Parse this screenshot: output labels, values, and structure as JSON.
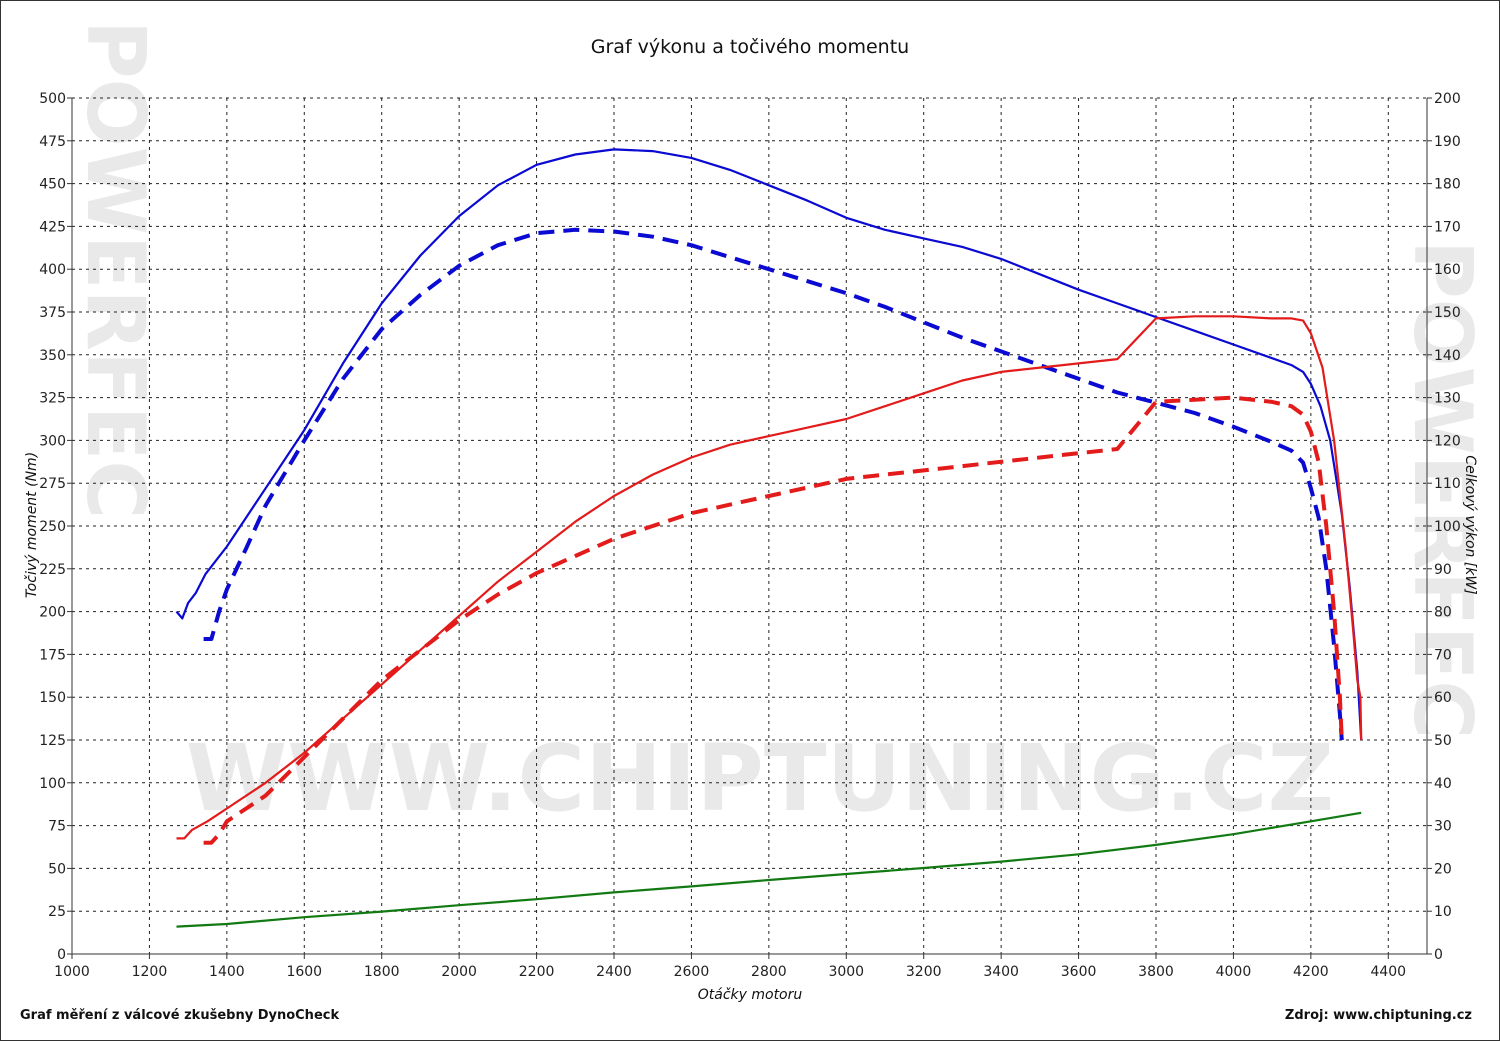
{
  "watermark": {
    "site": "WWW.CHIPTUNING.CZ",
    "brand": "POWERFEC"
  },
  "footer": {
    "left": "Graf měření z válcové zkušebny DynoCheck",
    "right": "Zdroj: www.chiptuning.cz"
  },
  "chart_data": {
    "type": "line",
    "title": "Graf výkonu a točivého momentu",
    "xlabel": "Otáčky motoru",
    "ylabel_left": "Točivý moment (Nm)",
    "ylabel_right": "Celkový výkon [kW]",
    "xlim": [
      1000,
      4500
    ],
    "ylim_left": [
      0,
      500
    ],
    "ylim_right": [
      0,
      200
    ],
    "x_ticks": [
      1000,
      1200,
      1400,
      1600,
      1800,
      2000,
      2200,
      2400,
      2600,
      2800,
      3000,
      3200,
      3400,
      3600,
      3800,
      4000,
      4200,
      4400
    ],
    "y_left_ticks": [
      0,
      25,
      50,
      75,
      100,
      125,
      150,
      175,
      200,
      225,
      250,
      275,
      300,
      325,
      350,
      375,
      400,
      425,
      450,
      475,
      500
    ],
    "y_right_ticks": [
      0,
      10,
      20,
      30,
      40,
      50,
      60,
      70,
      80,
      90,
      100,
      110,
      120,
      130,
      140,
      150,
      160,
      170,
      180,
      190,
      200
    ],
    "grid": true,
    "colors": {
      "torque": "#0a0ad2",
      "power": "#e31b1b",
      "loss": "#127a12",
      "grid": "#222222"
    },
    "series": [
      {
        "kind": "torque",
        "style": "solid",
        "axis": "left",
        "points": [
          [
            1270,
            200
          ],
          [
            1285,
            196
          ],
          [
            1300,
            205
          ],
          [
            1320,
            211
          ],
          [
            1345,
            222
          ],
          [
            1400,
            238
          ],
          [
            1500,
            272
          ],
          [
            1600,
            306
          ],
          [
            1700,
            345
          ],
          [
            1800,
            380
          ],
          [
            1900,
            408
          ],
          [
            2000,
            431
          ],
          [
            2100,
            449
          ],
          [
            2200,
            461
          ],
          [
            2300,
            467
          ],
          [
            2400,
            470
          ],
          [
            2500,
            469
          ],
          [
            2600,
            465
          ],
          [
            2700,
            458
          ],
          [
            2800,
            449
          ],
          [
            2900,
            440
          ],
          [
            3000,
            430
          ],
          [
            3100,
            423
          ],
          [
            3200,
            418
          ],
          [
            3300,
            413
          ],
          [
            3400,
            406
          ],
          [
            3500,
            397
          ],
          [
            3600,
            388
          ],
          [
            3700,
            380
          ],
          [
            3800,
            372
          ],
          [
            3900,
            364
          ],
          [
            4000,
            356
          ],
          [
            4100,
            348
          ],
          [
            4150,
            344
          ],
          [
            4180,
            340
          ],
          [
            4200,
            333
          ],
          [
            4225,
            320
          ],
          [
            4250,
            300
          ],
          [
            4280,
            257
          ],
          [
            4300,
            215
          ],
          [
            4320,
            165
          ],
          [
            4330,
            125
          ]
        ]
      },
      {
        "kind": "torque",
        "style": "dashed",
        "axis": "left",
        "points": [
          [
            1340,
            184
          ],
          [
            1360,
            184
          ],
          [
            1380,
            200
          ],
          [
            1400,
            213
          ],
          [
            1450,
            237
          ],
          [
            1500,
            262
          ],
          [
            1600,
            300
          ],
          [
            1700,
            336
          ],
          [
            1800,
            365
          ],
          [
            1900,
            385
          ],
          [
            2000,
            402
          ],
          [
            2100,
            414
          ],
          [
            2200,
            421
          ],
          [
            2300,
            423
          ],
          [
            2400,
            422
          ],
          [
            2500,
            419
          ],
          [
            2600,
            414
          ],
          [
            2700,
            407
          ],
          [
            2800,
            400
          ],
          [
            2900,
            393
          ],
          [
            3000,
            386
          ],
          [
            3100,
            378
          ],
          [
            3200,
            369
          ],
          [
            3300,
            360
          ],
          [
            3400,
            352
          ],
          [
            3500,
            344
          ],
          [
            3600,
            336
          ],
          [
            3700,
            328
          ],
          [
            3800,
            322
          ],
          [
            3900,
            316
          ],
          [
            4000,
            308
          ],
          [
            4100,
            299
          ],
          [
            4150,
            294
          ],
          [
            4180,
            287
          ],
          [
            4200,
            272
          ],
          [
            4220,
            255
          ],
          [
            4240,
            225
          ],
          [
            4260,
            180
          ],
          [
            4275,
            140
          ],
          [
            4280,
            125
          ]
        ]
      },
      {
        "kind": "power",
        "style": "solid",
        "axis": "right",
        "points": [
          [
            1270,
            27
          ],
          [
            1290,
            27
          ],
          [
            1310,
            29
          ],
          [
            1350,
            31
          ],
          [
            1400,
            34
          ],
          [
            1500,
            40
          ],
          [
            1600,
            47
          ],
          [
            1700,
            55
          ],
          [
            1800,
            63
          ],
          [
            1900,
            71
          ],
          [
            2000,
            79
          ],
          [
            2100,
            87
          ],
          [
            2200,
            94
          ],
          [
            2300,
            101
          ],
          [
            2400,
            107
          ],
          [
            2500,
            112
          ],
          [
            2600,
            116
          ],
          [
            2700,
            119
          ],
          [
            2800,
            121
          ],
          [
            2900,
            123
          ],
          [
            3000,
            125
          ],
          [
            3100,
            128
          ],
          [
            3200,
            131
          ],
          [
            3300,
            134
          ],
          [
            3400,
            136
          ],
          [
            3500,
            137
          ],
          [
            3600,
            138
          ],
          [
            3700,
            139
          ],
          [
            3800,
            148.5
          ],
          [
            3900,
            149
          ],
          [
            4000,
            149
          ],
          [
            4100,
            148.5
          ],
          [
            4150,
            148.5
          ],
          [
            4180,
            148
          ],
          [
            4200,
            145
          ],
          [
            4230,
            137
          ],
          [
            4260,
            120
          ],
          [
            4290,
            95
          ],
          [
            4310,
            75
          ],
          [
            4320,
            64
          ],
          [
            4328,
            60
          ],
          [
            4330,
            50
          ]
        ]
      },
      {
        "kind": "power",
        "style": "dashed",
        "axis": "right",
        "points": [
          [
            1340,
            26
          ],
          [
            1360,
            26
          ],
          [
            1380,
            28
          ],
          [
            1400,
            31
          ],
          [
            1500,
            37
          ],
          [
            1600,
            46
          ],
          [
            1700,
            55
          ],
          [
            1800,
            64
          ],
          [
            1900,
            71
          ],
          [
            2000,
            78
          ],
          [
            2100,
            84
          ],
          [
            2200,
            89
          ],
          [
            2300,
            93
          ],
          [
            2400,
            97
          ],
          [
            2500,
            100
          ],
          [
            2600,
            103
          ],
          [
            2700,
            105
          ],
          [
            2800,
            107
          ],
          [
            2900,
            109
          ],
          [
            3000,
            111
          ],
          [
            3100,
            112
          ],
          [
            3200,
            113
          ],
          [
            3300,
            114
          ],
          [
            3400,
            115
          ],
          [
            3500,
            116
          ],
          [
            3600,
            117
          ],
          [
            3700,
            118
          ],
          [
            3800,
            129
          ],
          [
            3900,
            129.5
          ],
          [
            4000,
            130
          ],
          [
            4100,
            129
          ],
          [
            4150,
            128
          ],
          [
            4180,
            126
          ],
          [
            4200,
            122
          ],
          [
            4220,
            115
          ],
          [
            4240,
            100
          ],
          [
            4260,
            80
          ],
          [
            4275,
            60
          ],
          [
            4280,
            50
          ]
        ]
      },
      {
        "kind": "loss",
        "style": "solid",
        "axis": "right",
        "points": [
          [
            1270,
            6.4
          ],
          [
            1400,
            7.0
          ],
          [
            1600,
            8.6
          ],
          [
            1800,
            9.9
          ],
          [
            2000,
            11.4
          ],
          [
            2200,
            12.8
          ],
          [
            2400,
            14.4
          ],
          [
            2600,
            15.8
          ],
          [
            2800,
            17.3
          ],
          [
            3000,
            18.7
          ],
          [
            3200,
            20.1
          ],
          [
            3400,
            21.6
          ],
          [
            3600,
            23.3
          ],
          [
            3800,
            25.5
          ],
          [
            4000,
            28.0
          ],
          [
            4200,
            31.0
          ],
          [
            4330,
            33.0
          ]
        ]
      }
    ]
  }
}
